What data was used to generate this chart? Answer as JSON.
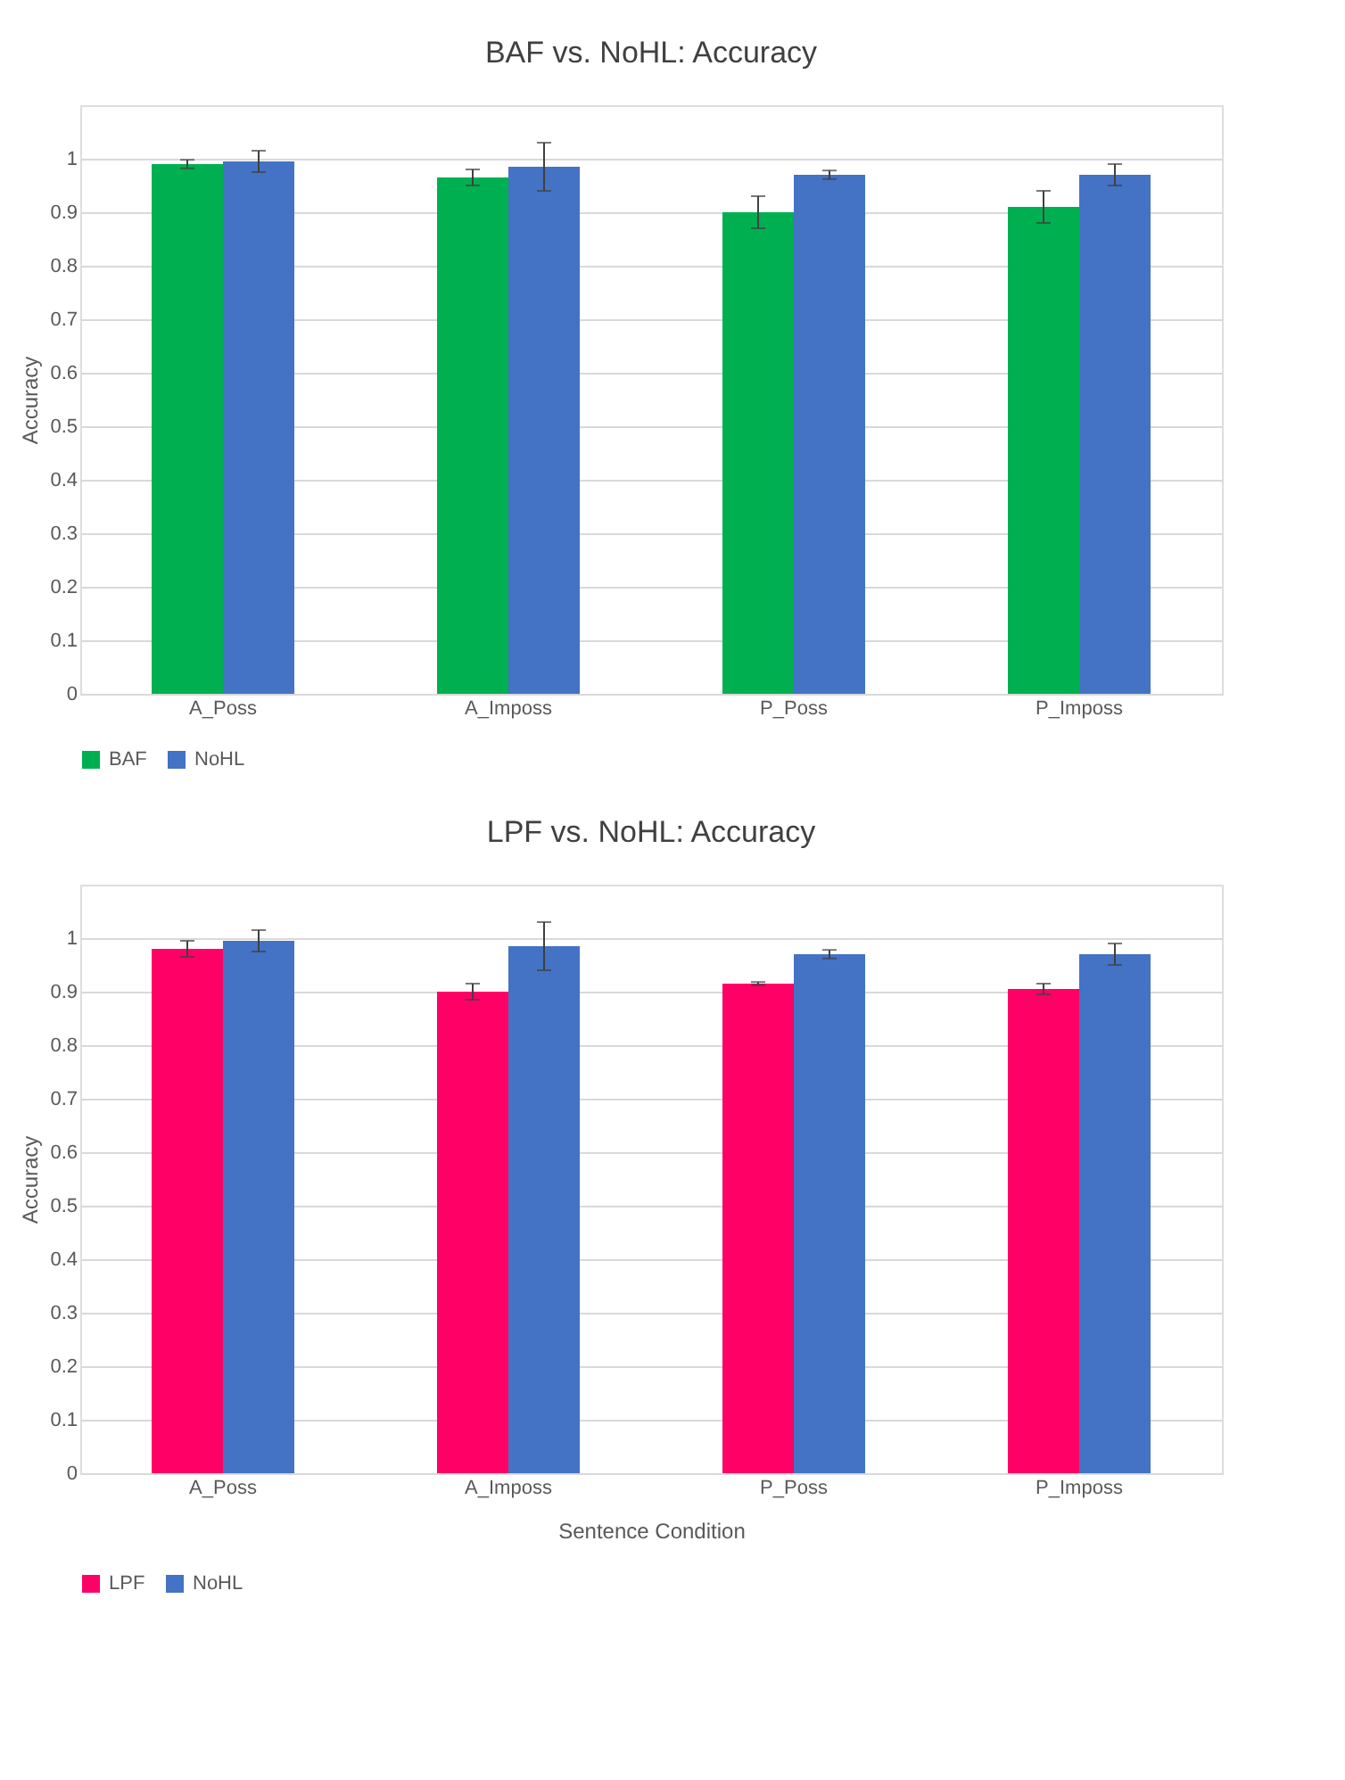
{
  "chart_data": [
    {
      "type": "bar",
      "title": "BAF vs. NoHL: Accuracy",
      "ylabel": "Accuracy",
      "categories": [
        "A_Poss",
        "A_Imposs",
        "P_Poss",
        "P_Imposs"
      ],
      "series": [
        {
          "name": "BAF",
          "color": "#00b050",
          "values": [
            0.99,
            0.965,
            0.9,
            0.91
          ],
          "errors": [
            0.008,
            0.015,
            0.03,
            0.03
          ]
        },
        {
          "name": "NoHL",
          "color": "#4472c4",
          "values": [
            0.995,
            0.985,
            0.97,
            0.97
          ],
          "errors": [
            0.02,
            0.045,
            0.008,
            0.02
          ]
        }
      ],
      "ylim": [
        0,
        1.1
      ],
      "yticks": [
        0,
        0.1,
        0.2,
        0.3,
        0.4,
        0.5,
        0.6,
        0.7,
        0.8,
        0.9,
        1
      ],
      "grid": "y",
      "legend": "bottom"
    },
    {
      "type": "bar",
      "title": "LPF vs. NoHL: Accuracy",
      "ylabel": "Accuracy",
      "xlabel": "Sentence Condition",
      "categories": [
        "A_Poss",
        "A_Imposs",
        "P_Poss",
        "P_Imposs"
      ],
      "series": [
        {
          "name": "LPF",
          "color": "#ff0066",
          "values": [
            0.98,
            0.9,
            0.915,
            0.905
          ],
          "errors": [
            0.015,
            0.015,
            0.003,
            0.01
          ]
        },
        {
          "name": "NoHL",
          "color": "#4472c4",
          "values": [
            0.995,
            0.985,
            0.97,
            0.97
          ],
          "errors": [
            0.02,
            0.045,
            0.008,
            0.02
          ]
        }
      ],
      "ylim": [
        0,
        1.1
      ],
      "yticks": [
        0,
        0.1,
        0.2,
        0.3,
        0.4,
        0.5,
        0.6,
        0.7,
        0.8,
        0.9,
        1
      ],
      "grid": "y",
      "legend": "bottom"
    }
  ]
}
